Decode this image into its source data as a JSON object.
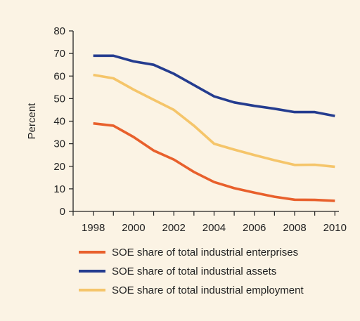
{
  "chart_data": {
    "type": "line",
    "title": "",
    "xlabel": "",
    "ylabel": "Percent",
    "xlim": [
      1997,
      2010.2
    ],
    "ylim": [
      0,
      80
    ],
    "x_ticks": [
      1998,
      2000,
      2002,
      2004,
      2006,
      2008,
      2010
    ],
    "x_tick_labels": [
      "1998",
      "2000",
      "2002",
      "2004",
      "2006",
      "2008",
      "2010"
    ],
    "y_ticks": [
      0,
      10,
      20,
      30,
      40,
      50,
      60,
      70,
      80
    ],
    "y_tick_labels": [
      "0",
      "10",
      "20",
      "30",
      "40",
      "50",
      "60",
      "70",
      "80"
    ],
    "grid": false,
    "legend_position": "bottom",
    "x": [
      1998,
      1999,
      2000,
      2001,
      2002,
      2003,
      2004,
      2005,
      2006,
      2007,
      2008,
      2009,
      2010
    ],
    "series": [
      {
        "name": "SOE share of total industrial enterprises",
        "color": "#e8602c",
        "values": [
          39,
          38,
          33,
          27,
          23,
          17.5,
          13,
          10.3,
          8.3,
          6.5,
          5.2,
          5.1,
          4.7
        ]
      },
      {
        "name": "SOE share of total industrial assets",
        "color": "#243c8f",
        "values": [
          69,
          69,
          66.5,
          65,
          61,
          56,
          51,
          48.3,
          46.8,
          45.5,
          44,
          44,
          42.3
        ]
      },
      {
        "name": "SOE share of total industrial employment",
        "color": "#f5c56a",
        "values": [
          60.5,
          59,
          54,
          49.5,
          45,
          38,
          30,
          27.4,
          25,
          22.7,
          20.6,
          20.7,
          19.8
        ]
      }
    ]
  }
}
